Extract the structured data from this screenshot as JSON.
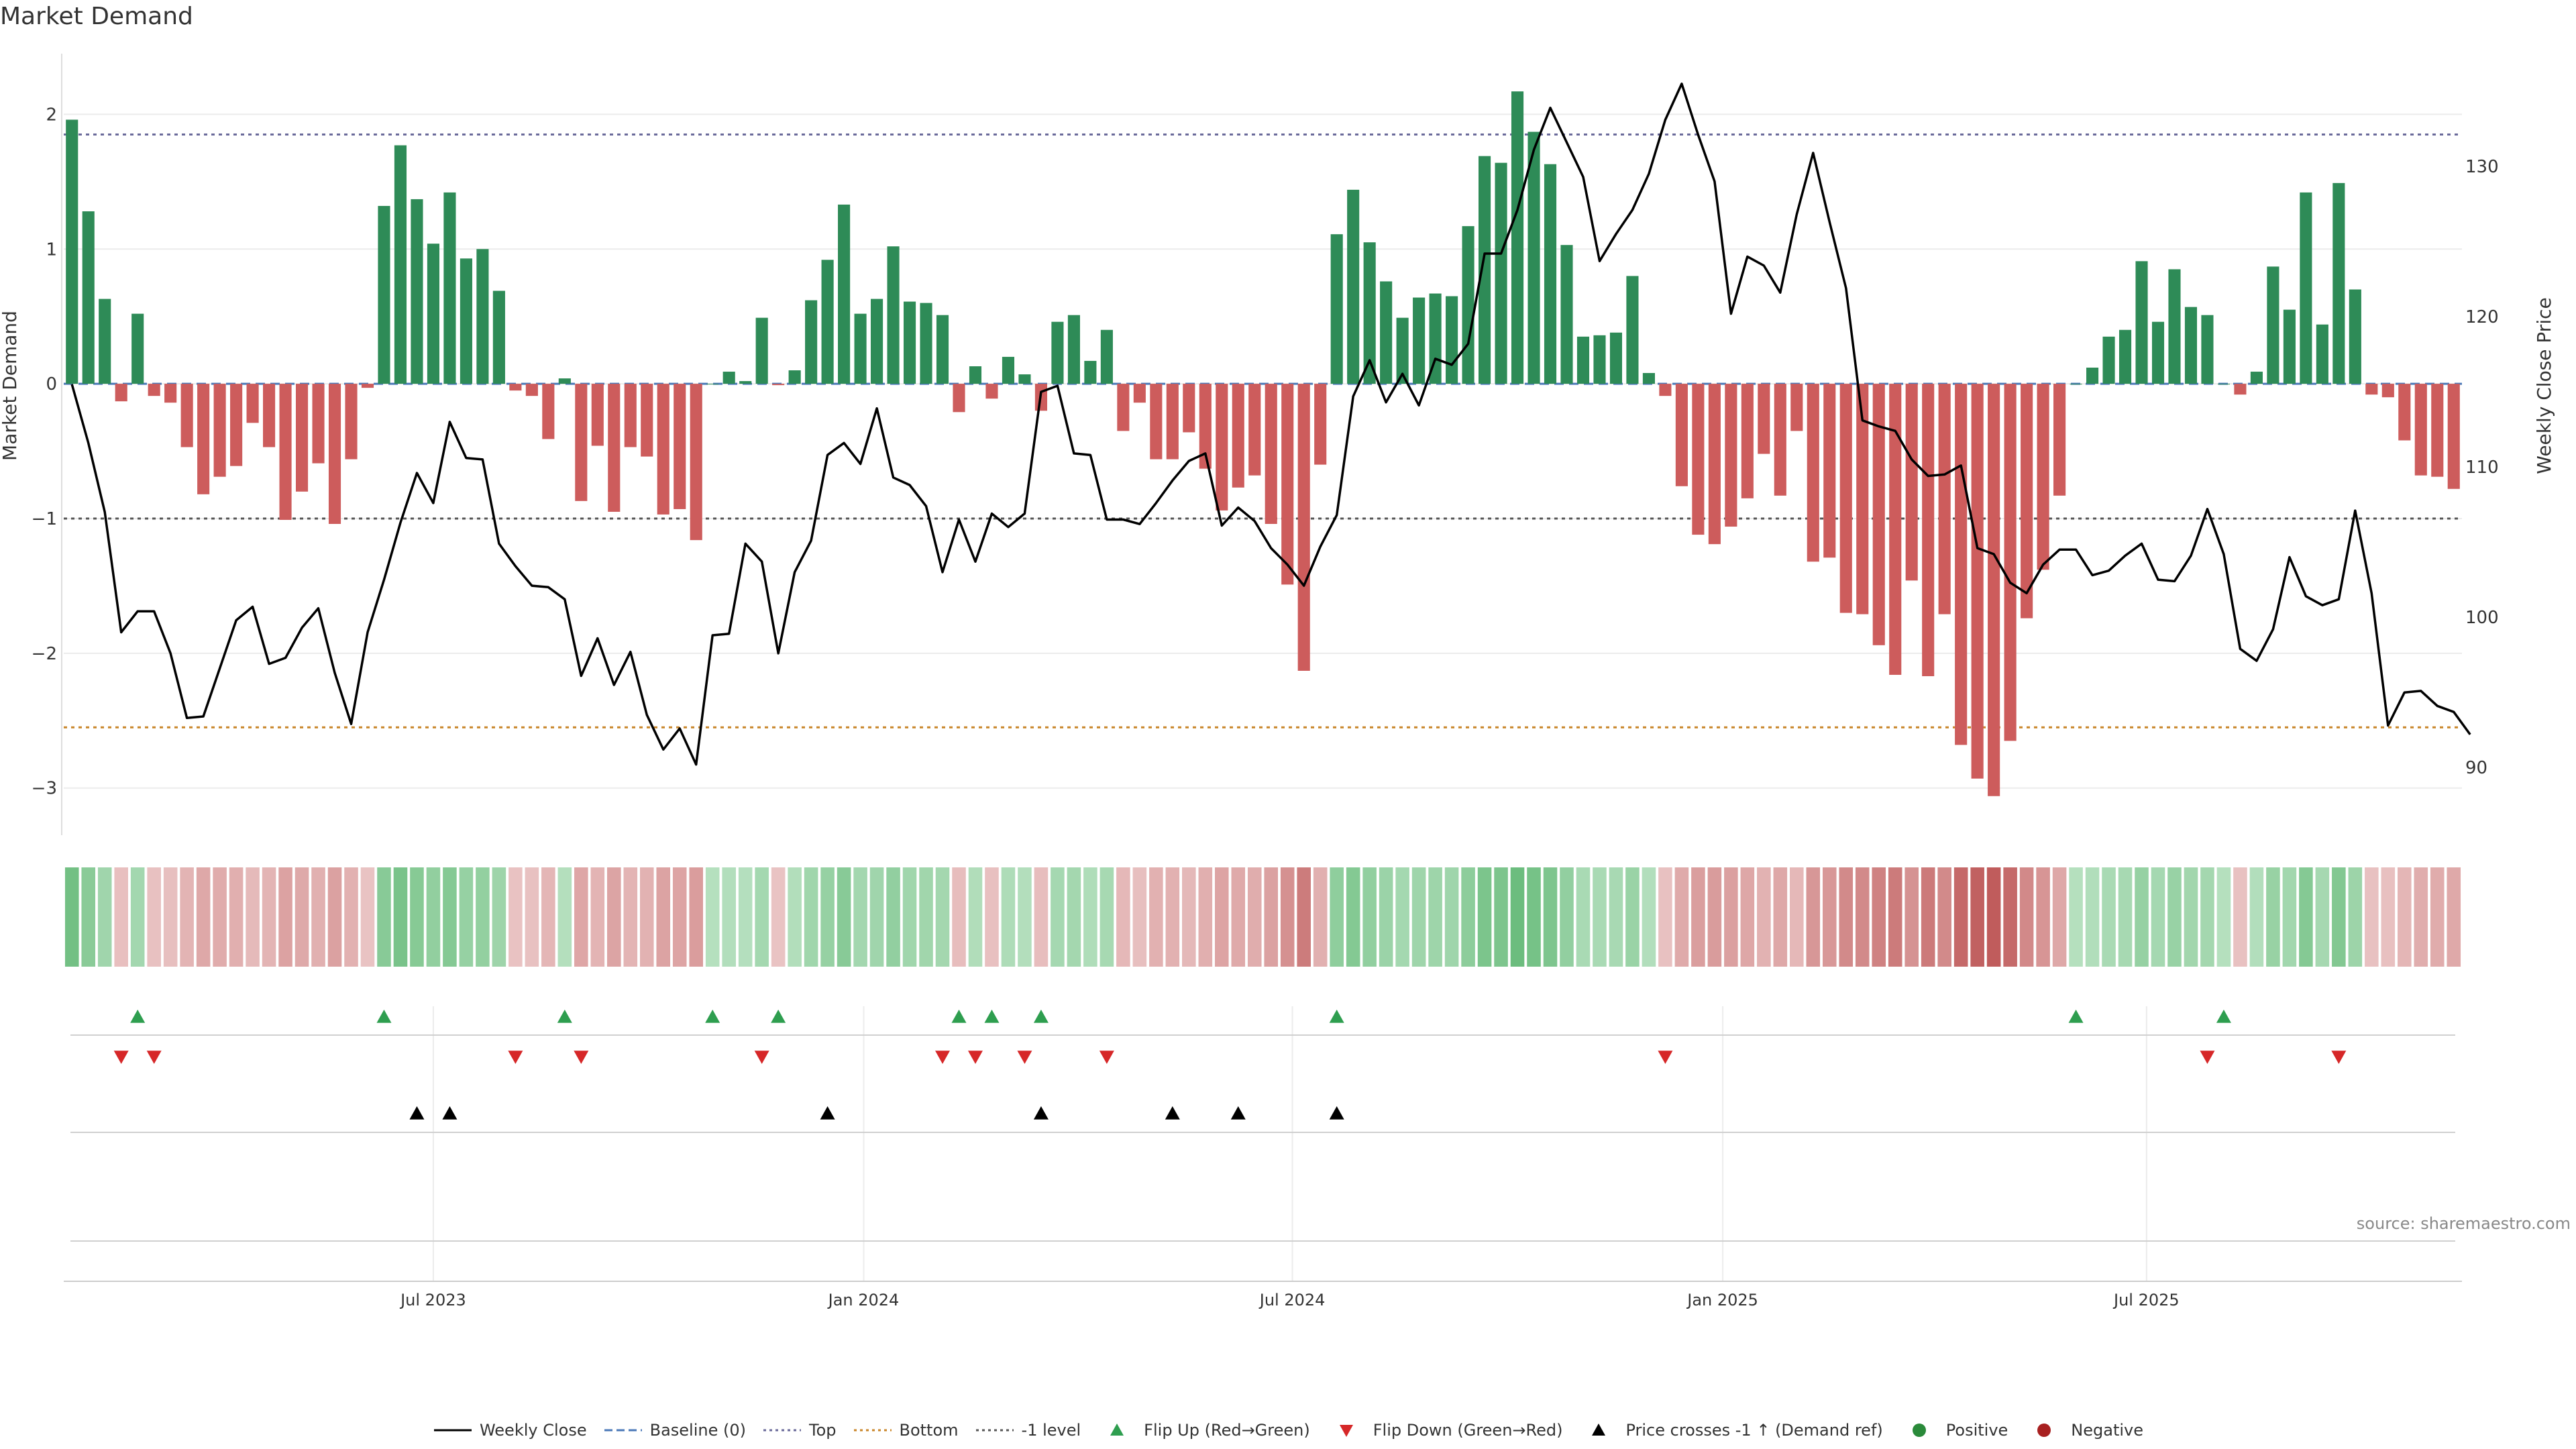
{
  "chart_data": {
    "type": "bar",
    "title": "Market Demand",
    "ylabel": "Market Demand",
    "y2label": "Weekly Close Price",
    "source": "source: sharemaestro.com",
    "ylim": [
      -3.35,
      2.45
    ],
    "y2lim": [
      85.5,
      137.5
    ],
    "yticks": [
      {
        "v": 2,
        "t": "2"
      },
      {
        "v": 1,
        "t": "1"
      },
      {
        "v": 0,
        "t": "0"
      },
      {
        "v": -1,
        "t": "−1"
      },
      {
        "v": -2,
        "t": "−2"
      },
      {
        "v": -3,
        "t": "−3"
      }
    ],
    "y2ticks": [
      {
        "v": 130,
        "t": "130"
      },
      {
        "v": 120,
        "t": "120"
      },
      {
        "v": 110,
        "t": "110"
      },
      {
        "v": 100,
        "t": "100"
      },
      {
        "v": 90,
        "t": "90"
      }
    ],
    "xticks": [
      {
        "i": 22.5,
        "t": "Jul 2023"
      },
      {
        "i": 48.7,
        "t": "Jan 2024"
      },
      {
        "i": 74.8,
        "t": "Jul 2024"
      },
      {
        "i": 101,
        "t": "Jan 2025"
      },
      {
        "i": 126.8,
        "t": "Jul 2025"
      }
    ],
    "top_level": 1.85,
    "bottom_level": -2.55,
    "minus1_level": -1,
    "demand": [
      1.96,
      1.28,
      0.63,
      -0.13,
      0.52,
      -0.09,
      -0.14,
      -0.47,
      -0.82,
      -0.69,
      -0.61,
      -0.29,
      -0.47,
      -1.01,
      -0.8,
      -0.59,
      -1.04,
      -0.56,
      -0.03,
      1.32,
      1.77,
      1.37,
      1.04,
      1.42,
      0.93,
      1.0,
      0.69,
      -0.05,
      -0.09,
      -0.41,
      0.04,
      -0.87,
      -0.46,
      -0.95,
      -0.47,
      -0.54,
      -0.97,
      -0.93,
      -1.16,
      0.0,
      0.09,
      0.02,
      0.49,
      -0.01,
      0.1,
      0.62,
      0.92,
      1.33,
      0.52,
      0.63,
      1.02,
      0.61,
      0.6,
      0.51,
      -0.21,
      0.13,
      -0.11,
      0.2,
      0.07,
      -0.2,
      0.46,
      0.51,
      0.17,
      0.4,
      -0.35,
      -0.14,
      -0.56,
      -0.56,
      -0.36,
      -0.63,
      -0.94,
      -0.77,
      -0.68,
      -1.04,
      -1.49,
      -2.13,
      -0.6,
      1.11,
      1.44,
      1.05,
      0.76,
      0.49,
      0.64,
      0.67,
      0.65,
      1.17,
      1.69,
      1.64,
      2.17,
      1.87,
      1.63,
      1.03,
      0.35,
      0.36,
      0.38,
      0.8,
      0.08,
      -0.09,
      -0.76,
      -1.12,
      -1.19,
      -1.06,
      -0.85,
      -0.52,
      -0.83,
      -0.35,
      -1.32,
      -1.29,
      -1.7,
      -1.71,
      -1.94,
      -2.16,
      -1.46,
      -2.17,
      -1.71,
      -2.68,
      -2.93,
      -3.06,
      -2.65,
      -1.74,
      -1.38,
      -0.83,
      0.0,
      0.12,
      0.35,
      0.4,
      0.91,
      0.46,
      0.85,
      0.57,
      0.51,
      0.0,
      -0.08,
      0.09,
      0.87,
      0.55,
      1.42,
      0.44,
      1.49,
      0.7,
      -0.08,
      -0.1,
      -0.42,
      -0.68,
      -0.69,
      -0.78
    ],
    "price": [
      115.5,
      111.6,
      107.0,
      99.0,
      100.4,
      100.4,
      97.6,
      93.3,
      93.4,
      96.6,
      99.8,
      100.7,
      96.9,
      97.3,
      99.3,
      100.6,
      96.3,
      92.9,
      99.0,
      102.5,
      106.3,
      109.6,
      107.6,
      113.0,
      110.6,
      110.5,
      104.9,
      103.4,
      102.1,
      102.0,
      101.2,
      96.1,
      98.6,
      95.5,
      97.7,
      93.5,
      91.2,
      92.6,
      90.2,
      98.8,
      98.9,
      104.9,
      103.7,
      97.6,
      103.0,
      105.1,
      110.8,
      111.6,
      110.2,
      113.9,
      109.3,
      108.8,
      107.4,
      103.0,
      106.5,
      103.7,
      106.9,
      106.0,
      106.9,
      115.0,
      115.4,
      110.9,
      110.8,
      106.5,
      106.5,
      106.2,
      107.6,
      109.1,
      110.4,
      110.9,
      106.1,
      107.3,
      106.4,
      104.6,
      103.5,
      102.1,
      104.7,
      106.8,
      114.7,
      117.1,
      114.3,
      116.2,
      114.1,
      117.2,
      116.8,
      118.2,
      124.2,
      124.2,
      127.1,
      131.1,
      133.9,
      131.6,
      129.3,
      123.7,
      125.5,
      127.1,
      129.5,
      133.1,
      135.5,
      132.1,
      129.0,
      120.2,
      124.0,
      123.4,
      121.6,
      126.8,
      130.9,
      126.3,
      121.9,
      113.1,
      112.7,
      112.4,
      110.5,
      109.4,
      109.5,
      110.1,
      104.6,
      104.2,
      102.3,
      101.6,
      103.5,
      104.5,
      104.5,
      102.8,
      103.1,
      104.1,
      104.9,
      102.5,
      102.4,
      104.1,
      107.2,
      104.2,
      97.9,
      97.1,
      99.2,
      104.0,
      101.4,
      100.8,
      101.2,
      107.1,
      101.6,
      92.8,
      95.0,
      95.1,
      94.1,
      93.7,
      92.2
    ],
    "flip_up": [
      4,
      19,
      30,
      39,
      43,
      54,
      56,
      59,
      77,
      122,
      131
    ],
    "flip_down": [
      3,
      5,
      27,
      31,
      42,
      53,
      55,
      58,
      63,
      97,
      130,
      138
    ],
    "price_cross": [
      21,
      23,
      46,
      59,
      67,
      71,
      77
    ],
    "legend": [
      {
        "label": "Weekly Close",
        "kind": "line",
        "color": "#000000"
      },
      {
        "label": "Baseline (0)",
        "kind": "dash",
        "color": "#4a78b8"
      },
      {
        "label": "Top",
        "kind": "dot",
        "color": "#6a6a9a"
      },
      {
        "label": "Bottom",
        "kind": "dot",
        "color": "#c9862a"
      },
      {
        "label": "-1 level",
        "kind": "dot",
        "color": "#555555"
      },
      {
        "label": "Flip Up (Red→Green)",
        "kind": "tri-up",
        "color": "#2e9e4f"
      },
      {
        "label": "Flip Down (Green→Red)",
        "kind": "tri-down",
        "color": "#d62728"
      },
      {
        "label": "Price crosses -1 ↑ (Demand ref)",
        "kind": "tri-up",
        "color": "#000000"
      },
      {
        "label": "Positive",
        "kind": "circle",
        "color": "#2a8a3a"
      },
      {
        "label": "Negative",
        "kind": "circle",
        "color": "#a82020"
      }
    ],
    "colors": {
      "positive": "#2e8b57",
      "negative": "#cd5c5c",
      "price": "#000000",
      "top": "#6a6a9a",
      "bottom": "#c9862a",
      "minus1": "#555555",
      "baseline": "#4a78b8",
      "flip_up": "#2e9e4f",
      "flip_down": "#d62728",
      "cross": "#000000"
    }
  }
}
